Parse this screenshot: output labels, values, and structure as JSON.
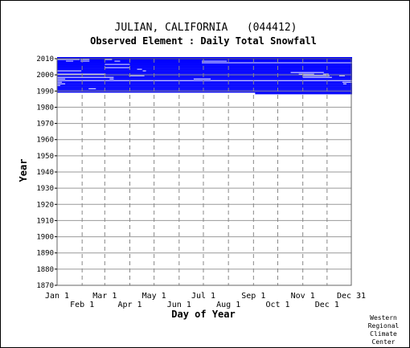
{
  "chart_data": {
    "type": "heatmap",
    "title": "JULIAN, CALIFORNIA   (044412)",
    "subtitle": "Observed Element : Daily Total Snowfall",
    "xlabel": "Day of Year",
    "ylabel": "Year",
    "credit": [
      "Western",
      "Regional",
      "Climate",
      "Center"
    ],
    "x_ticks_top": [
      "Jan 1",
      "Mar 1",
      "May 1",
      "Jul 1",
      "Sep 1",
      "Nov 1",
      "Dec 31"
    ],
    "x_ticks_bottom": [
      "Feb 1",
      "Apr 1",
      "Jun 1",
      "Aug 1",
      "Oct 1",
      "Dec 1"
    ],
    "y_ticks": [
      "2010",
      "2000",
      "1990",
      "1980",
      "1970",
      "1960",
      "1950",
      "1940",
      "1930",
      "1920",
      "1910",
      "1900",
      "1890",
      "1880",
      "1870"
    ],
    "xlim": [
      "Jan 1",
      "Dec 31"
    ],
    "ylim": [
      1870,
      2010
    ],
    "grid": true,
    "data_color": "#0000ff",
    "gap_color": "#ffffff",
    "coverage": {
      "description": "Observed data present (blue) for years 1988-2010; white = missing days",
      "full_year_range": [
        1989,
        2010
      ],
      "partial_first_year": {
        "year": 1988,
        "from_day": 246,
        "to_day": 365
      }
    },
    "missing_segments": [
      {
        "year": 2009,
        "from_day": 1,
        "to_day": 28
      },
      {
        "year": 2009,
        "from_day": 30,
        "to_day": 40
      },
      {
        "year": 2009,
        "from_day": 60,
        "to_day": 68
      },
      {
        "year": 2008,
        "from_day": 12,
        "to_day": 20
      },
      {
        "year": 2008,
        "from_day": 30,
        "to_day": 40
      },
      {
        "year": 2008,
        "from_day": 72,
        "to_day": 78
      },
      {
        "year": 2008,
        "from_day": 180,
        "to_day": 210
      },
      {
        "year": 2007,
        "from_day": 180,
        "to_day": 365
      },
      {
        "year": 2006,
        "from_day": 60,
        "to_day": 90
      },
      {
        "year": 2004,
        "from_day": 60,
        "to_day": 90
      },
      {
        "year": 2003,
        "from_day": 100,
        "to_day": 105
      },
      {
        "year": 2002,
        "from_day": 1,
        "to_day": 30
      },
      {
        "year": 2002,
        "from_day": 107,
        "to_day": 110
      },
      {
        "year": 2001,
        "from_day": 290,
        "to_day": 330
      },
      {
        "year": 2000,
        "from_day": 300,
        "to_day": 318
      },
      {
        "year": 2000,
        "from_day": 1,
        "to_day": 60
      },
      {
        "year": 2000,
        "from_day": 330,
        "to_day": 336
      },
      {
        "year": 1999,
        "from_day": 90,
        "to_day": 108
      },
      {
        "year": 1999,
        "from_day": 305,
        "to_day": 337
      },
      {
        "year": 1999,
        "from_day": 350,
        "to_day": 356
      },
      {
        "year": 1998,
        "from_day": 1,
        "to_day": 60
      },
      {
        "year": 1998,
        "from_day": 60,
        "to_day": 70
      },
      {
        "year": 1998,
        "from_day": 305,
        "to_day": 340
      },
      {
        "year": 1997,
        "from_day": 1,
        "to_day": 10
      },
      {
        "year": 1997,
        "from_day": 66,
        "to_day": 70
      },
      {
        "year": 1997,
        "from_day": 170,
        "to_day": 190
      },
      {
        "year": 1996,
        "from_day": 1,
        "to_day": 365
      },
      {
        "year": 1995,
        "from_day": 1,
        "to_day": 6
      },
      {
        "year": 1995,
        "from_day": 354,
        "to_day": 365
      },
      {
        "year": 1994,
        "from_day": 1,
        "to_day": 10
      },
      {
        "year": 1994,
        "from_day": 355,
        "to_day": 358
      },
      {
        "year": 1993,
        "from_day": 1,
        "to_day": 4
      },
      {
        "year": 1991,
        "from_day": 40,
        "to_day": 48
      }
    ]
  }
}
